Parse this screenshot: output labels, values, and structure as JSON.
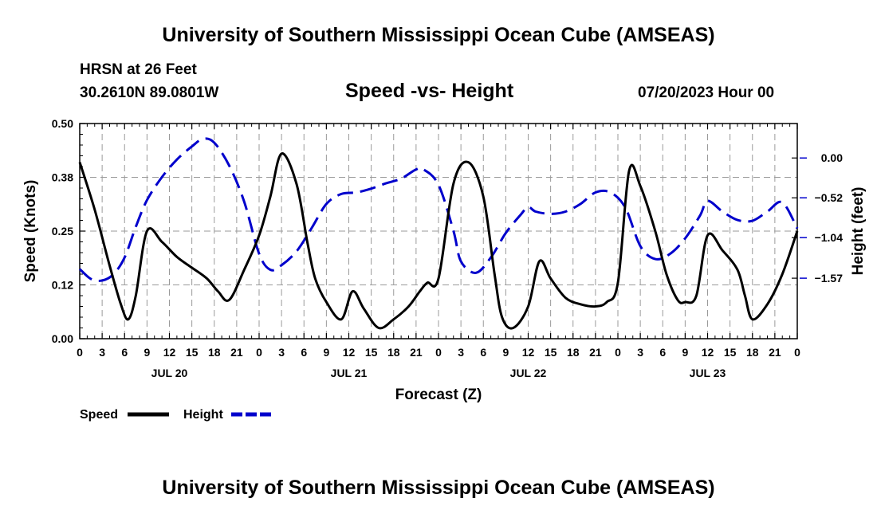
{
  "header": {
    "title": "University of Southern Mississippi Ocean Cube (AMSEAS)",
    "station": "HRSN at 26 Feet",
    "coords": "30.2610N  89.0801W",
    "subtitle": "Speed -vs- Height",
    "datetime": "07/20/2023 Hour 00"
  },
  "footer": {
    "title": "University of Southern Mississippi Ocean Cube (AMSEAS)"
  },
  "colors": {
    "speed": "#000000",
    "height": "#0000cc",
    "grid": "#9a9a9a"
  },
  "chart_data": {
    "type": "line",
    "title": "Speed -vs- Height",
    "xlabel": "Forecast (Z)",
    "ylabel": "Speed (Knots)",
    "y2label": "Height (feet)",
    "xlim": [
      0,
      96
    ],
    "ylim": [
      0.0,
      0.5
    ],
    "y2lim": [
      -2.36,
      0.45
    ],
    "x_ticks": [
      0,
      3,
      6,
      9,
      12,
      15,
      18,
      21,
      24,
      27,
      30,
      33,
      36,
      39,
      42,
      45,
      48,
      51,
      54,
      57,
      60,
      63,
      66,
      69,
      72,
      75,
      78,
      81,
      84,
      87,
      90,
      93,
      96
    ],
    "x_tick_labels": [
      "0",
      "3",
      "6",
      "9",
      "12",
      "15",
      "18",
      "21",
      "0",
      "3",
      "6",
      "9",
      "12",
      "15",
      "18",
      "21",
      "0",
      "3",
      "6",
      "9",
      "12",
      "15",
      "18",
      "21",
      "0",
      "3",
      "6",
      "9",
      "12",
      "15",
      "18",
      "21",
      "0"
    ],
    "day_labels": [
      {
        "x": 12,
        "label": "JUL 20"
      },
      {
        "x": 36,
        "label": "JUL 21"
      },
      {
        "x": 60,
        "label": "JUL 22"
      },
      {
        "x": 84,
        "label": "JUL 23"
      }
    ],
    "y_ticks": [
      0.0,
      0.125,
      0.25,
      0.375,
      0.5
    ],
    "y_tick_labels": [
      "0.00",
      "0.12",
      "0.25",
      "0.38",
      "0.50"
    ],
    "y2_ticks": [
      0.0,
      -0.52,
      -1.04,
      -1.57
    ],
    "y2_tick_labels": [
      "0.00",
      "−0.52",
      "−1.04",
      "−1.57"
    ],
    "grid": true,
    "legend": [
      {
        "name": "Speed",
        "style": "solid"
      },
      {
        "name": "Height",
        "style": "dashed"
      }
    ],
    "series": [
      {
        "name": "Speed",
        "axis": "left",
        "x": [
          0,
          2,
          4,
          5.5,
          6.5,
          7.5,
          9,
          11,
          13,
          15,
          17,
          18.5,
          20,
          22,
          24,
          25.5,
          27,
          29,
          30.5,
          31.5,
          33,
          35,
          36.5,
          38,
          40,
          42,
          44,
          45.5,
          46.5,
          48,
          50,
          52,
          54,
          55.5,
          56.5,
          58,
          60,
          61.5,
          63,
          65,
          67,
          69,
          70.5,
          72,
          73.5,
          75,
          77,
          78.5,
          80,
          81,
          82.5,
          84,
          86,
          88,
          89,
          90,
          92,
          94,
          96
        ],
        "values": [
          0.41,
          0.3,
          0.17,
          0.08,
          0.045,
          0.1,
          0.25,
          0.225,
          0.19,
          0.165,
          0.14,
          0.11,
          0.09,
          0.16,
          0.24,
          0.33,
          0.43,
          0.36,
          0.22,
          0.14,
          0.085,
          0.045,
          0.11,
          0.07,
          0.025,
          0.045,
          0.075,
          0.11,
          0.13,
          0.14,
          0.36,
          0.41,
          0.33,
          0.15,
          0.05,
          0.025,
          0.075,
          0.18,
          0.14,
          0.095,
          0.08,
          0.075,
          0.085,
          0.13,
          0.39,
          0.355,
          0.25,
          0.15,
          0.09,
          0.085,
          0.1,
          0.24,
          0.205,
          0.16,
          0.1,
          0.045,
          0.08,
          0.15,
          0.25
        ]
      },
      {
        "name": "Height",
        "axis": "right",
        "x": [
          0,
          1.5,
          3,
          4.5,
          6,
          7.5,
          9,
          11,
          13,
          15,
          16.5,
          18,
          20,
          22,
          24,
          25.5,
          27,
          29,
          31,
          33,
          35,
          37,
          39,
          41,
          43,
          45,
          46,
          48,
          50,
          51,
          53,
          55,
          57,
          59,
          60,
          61,
          63,
          65,
          67,
          69,
          71,
          73,
          75,
          77,
          79,
          81,
          83,
          84,
          86,
          88,
          90,
          92,
          94,
          96
        ],
        "values": [
          -1.45,
          -1.58,
          -1.6,
          -1.52,
          -1.3,
          -0.9,
          -0.55,
          -0.25,
          -0.02,
          0.15,
          0.25,
          0.2,
          -0.1,
          -0.57,
          -1.25,
          -1.46,
          -1.4,
          -1.22,
          -0.92,
          -0.6,
          -0.47,
          -0.45,
          -0.4,
          -0.33,
          -0.27,
          -0.15,
          -0.15,
          -0.35,
          -0.95,
          -1.35,
          -1.5,
          -1.3,
          -0.98,
          -0.74,
          -0.64,
          -0.7,
          -0.73,
          -0.7,
          -0.6,
          -0.45,
          -0.45,
          -0.65,
          -1.15,
          -1.32,
          -1.25,
          -1.05,
          -0.75,
          -0.56,
          -0.7,
          -0.81,
          -0.82,
          -0.7,
          -0.58,
          -0.92
        ]
      }
    ]
  }
}
